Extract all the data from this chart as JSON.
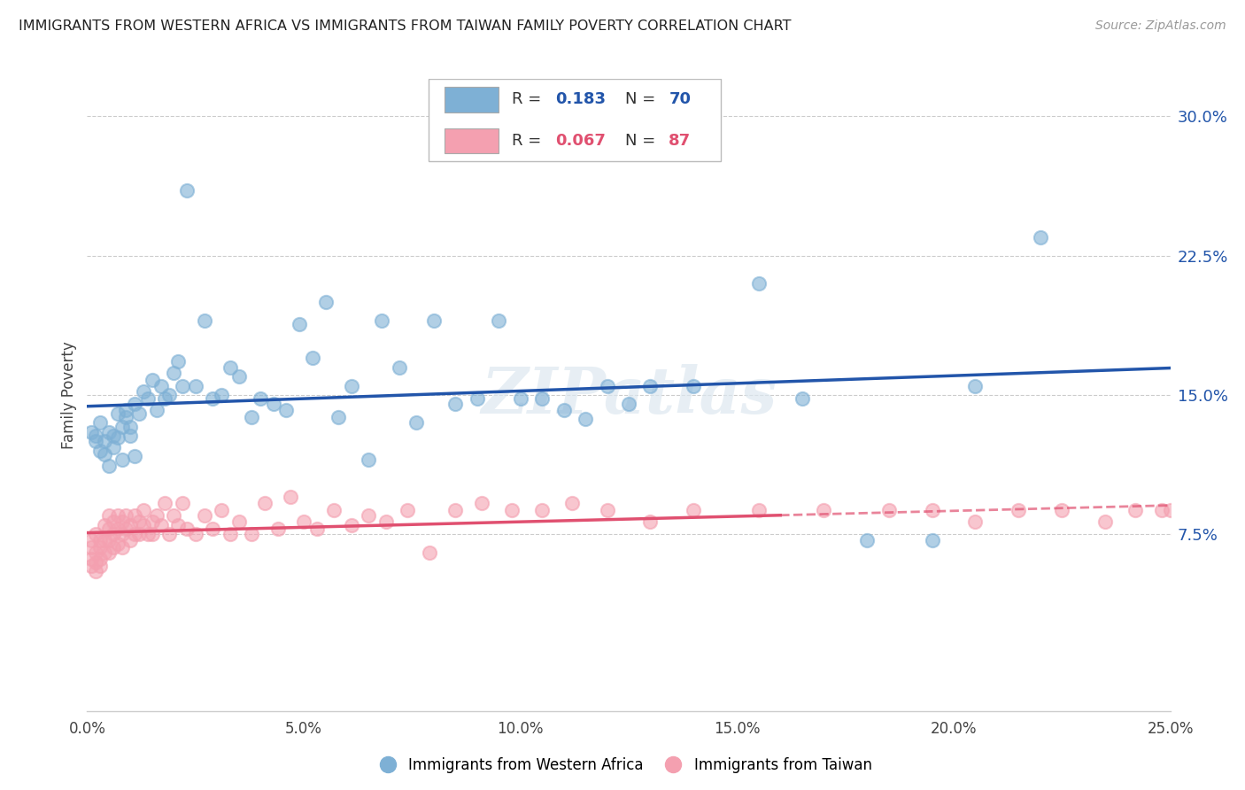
{
  "title": "IMMIGRANTS FROM WESTERN AFRICA VS IMMIGRANTS FROM TAIWAN FAMILY POVERTY CORRELATION CHART",
  "source": "Source: ZipAtlas.com",
  "ylabel": "Family Poverty",
  "ytick_labels": [
    "7.5%",
    "15.0%",
    "22.5%",
    "30.0%"
  ],
  "ytick_values": [
    0.075,
    0.15,
    0.225,
    0.3
  ],
  "xtick_labels": [
    "0.0%",
    "5.0%",
    "10.0%",
    "15.0%",
    "20.0%",
    "25.0%"
  ],
  "xtick_values": [
    0.0,
    0.05,
    0.1,
    0.15,
    0.2,
    0.25
  ],
  "xlim": [
    0.0,
    0.25
  ],
  "ylim": [
    -0.02,
    0.32
  ],
  "watermark": "ZIPatlas",
  "blue_color": "#7EB0D5",
  "pink_color": "#F4A0B0",
  "blue_line_color": "#2255AA",
  "pink_line_color": "#E05070",
  "wa_R": 0.183,
  "wa_N": 70,
  "tw_R": 0.067,
  "tw_N": 87,
  "western_africa_x": [
    0.001,
    0.002,
    0.002,
    0.003,
    0.003,
    0.004,
    0.004,
    0.005,
    0.005,
    0.006,
    0.006,
    0.007,
    0.007,
    0.008,
    0.008,
    0.009,
    0.009,
    0.01,
    0.01,
    0.011,
    0.011,
    0.012,
    0.013,
    0.014,
    0.015,
    0.016,
    0.017,
    0.018,
    0.019,
    0.02,
    0.021,
    0.022,
    0.023,
    0.025,
    0.027,
    0.029,
    0.031,
    0.033,
    0.035,
    0.038,
    0.04,
    0.043,
    0.046,
    0.049,
    0.052,
    0.055,
    0.058,
    0.061,
    0.065,
    0.068,
    0.072,
    0.076,
    0.08,
    0.085,
    0.09,
    0.095,
    0.1,
    0.105,
    0.11,
    0.115,
    0.12,
    0.125,
    0.13,
    0.14,
    0.155,
    0.165,
    0.18,
    0.195,
    0.205,
    0.22
  ],
  "western_africa_y": [
    0.13,
    0.125,
    0.128,
    0.12,
    0.135,
    0.118,
    0.125,
    0.13,
    0.112,
    0.128,
    0.122,
    0.127,
    0.14,
    0.133,
    0.115,
    0.142,
    0.138,
    0.128,
    0.133,
    0.117,
    0.145,
    0.14,
    0.152,
    0.148,
    0.158,
    0.142,
    0.155,
    0.148,
    0.15,
    0.162,
    0.168,
    0.155,
    0.26,
    0.155,
    0.19,
    0.148,
    0.15,
    0.165,
    0.16,
    0.138,
    0.148,
    0.145,
    0.142,
    0.188,
    0.17,
    0.2,
    0.138,
    0.155,
    0.115,
    0.19,
    0.165,
    0.135,
    0.19,
    0.145,
    0.148,
    0.19,
    0.148,
    0.148,
    0.142,
    0.137,
    0.155,
    0.145,
    0.155,
    0.155,
    0.21,
    0.148,
    0.072,
    0.072,
    0.155,
    0.235
  ],
  "taiwan_x": [
    0.001,
    0.001,
    0.001,
    0.001,
    0.002,
    0.002,
    0.002,
    0.002,
    0.003,
    0.003,
    0.003,
    0.003,
    0.004,
    0.004,
    0.004,
    0.005,
    0.005,
    0.005,
    0.005,
    0.006,
    0.006,
    0.006,
    0.007,
    0.007,
    0.007,
    0.008,
    0.008,
    0.008,
    0.009,
    0.009,
    0.01,
    0.01,
    0.011,
    0.011,
    0.012,
    0.012,
    0.013,
    0.013,
    0.014,
    0.015,
    0.015,
    0.016,
    0.017,
    0.018,
    0.019,
    0.02,
    0.021,
    0.022,
    0.023,
    0.025,
    0.027,
    0.029,
    0.031,
    0.033,
    0.035,
    0.038,
    0.041,
    0.044,
    0.047,
    0.05,
    0.053,
    0.057,
    0.061,
    0.065,
    0.069,
    0.074,
    0.079,
    0.085,
    0.091,
    0.098,
    0.105,
    0.112,
    0.12,
    0.13,
    0.14,
    0.155,
    0.17,
    0.185,
    0.195,
    0.205,
    0.215,
    0.225,
    0.235,
    0.242,
    0.248,
    0.25,
    0.252
  ],
  "taiwan_y": [
    0.068,
    0.072,
    0.062,
    0.058,
    0.075,
    0.065,
    0.06,
    0.055,
    0.072,
    0.068,
    0.062,
    0.058,
    0.08,
    0.072,
    0.065,
    0.085,
    0.078,
    0.072,
    0.065,
    0.082,
    0.075,
    0.068,
    0.085,
    0.078,
    0.07,
    0.082,
    0.075,
    0.068,
    0.085,
    0.078,
    0.08,
    0.072,
    0.085,
    0.075,
    0.082,
    0.075,
    0.088,
    0.08,
    0.075,
    0.082,
    0.075,
    0.085,
    0.08,
    0.092,
    0.075,
    0.085,
    0.08,
    0.092,
    0.078,
    0.075,
    0.085,
    0.078,
    0.088,
    0.075,
    0.082,
    0.075,
    0.092,
    0.078,
    0.095,
    0.082,
    0.078,
    0.088,
    0.08,
    0.085,
    0.082,
    0.088,
    0.065,
    0.088,
    0.092,
    0.088,
    0.088,
    0.092,
    0.088,
    0.082,
    0.088,
    0.088,
    0.088,
    0.088,
    0.088,
    0.082,
    0.088,
    0.088,
    0.082,
    0.088,
    0.088,
    0.088,
    0.075
  ]
}
